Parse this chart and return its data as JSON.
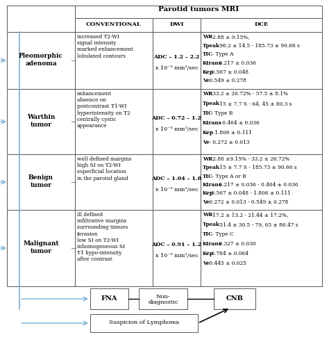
{
  "title": "Parotid tumors MRI",
  "col_headers": [
    "CONVENTIONAL",
    "DWI",
    "DCE"
  ],
  "row_headers": [
    "Pleomorphic\nadenoma",
    "Warthin\ntumor",
    "Benign\ntumor",
    "Malignant\ntumor"
  ],
  "conventional": [
    "increased T2-WI\nsignal intensity\nmarked enhancement\nlobulated contours",
    "enhancement\nabsence on\npostcontrast T1-WI\nhyperintensity on T2\ncentrally cystic\nappearance",
    "well defined margins\nhigh SI on T2-WI\nsuperficial location\nin the parotid gland",
    "ill defined\ninfiltrative margins\nsurrounding tissues\ninvasion\nlow SI on T2-WI\ninhomogeneous SI\nT1 hypo-intensity\nafter contrast"
  ],
  "dwi_line1": [
    "ADC – 1.2 – 2.2",
    "ADC – 0.72 – 1.2",
    "ADC – 1.04 – 1.8",
    "ADC – 0.91 – 1.2"
  ],
  "dwi_line2": "x 10⁻³ mm²/sec",
  "dce": [
    "WR - 2.88 ± 9.15%,\nTpeak - 96.2 ± 14.5 - 185.73 ± 90.66 s\nTIC – Type A\nKtrans 0.217 ± 0.036\nKep 0.567 ± 0.048\nVe 0.549 ± 0.278",
    "WR - 33.2 ± 26.72% - 57.5 ± 8.1%\nTpeak - 15 ± 7.7 S - 64, 45 ± 80.3 s\nTIC - Type B\nKtrans - 0.464 ± 0.036\nKep - 1.806 ± 0.111\nVe - 0.272 ± 0.013",
    "WR - 2.88 ±9.15% - 33.2 ± 26.72%\nTpeak - 15 ± 7.7 S - 185.73 ± 90.66 s\nTIC – Type A or B\nKtrans 0.217 ± 0.036 - 0.464 ± 0.036\nKep 0.567 ± 0.048 - 1.806 ± 0.111\nVe 0.272 ± 0.013 - 0.549 ± 0.278",
    "WR - 17.2 ± 13.2 - 21.44 ± 17.2%,\nTpeak - 51.4 ± 30.5 - 79, 65 ± 86.47 s\nTIC – Type C\nKtrans 0.327 ± 0.030\nKep 0.784 ± 0.064\nVe 0.445 ± 0.025"
  ],
  "dce_bold": [
    [
      "WR",
      "Tpeak",
      "TIC",
      "Ktrans",
      "Kep",
      "Ve"
    ],
    [
      "WR",
      "Tpeak",
      "TIC",
      "Ktrans",
      "Kep",
      "Ve"
    ],
    [
      "WR",
      "Tpeak",
      "TIC",
      "Ktrans",
      "Kep",
      "Ve"
    ],
    [
      "WR",
      "Tpeak",
      "TIC",
      "Ktrans",
      "Kep",
      "Ve"
    ]
  ],
  "border_color": "#555555",
  "blue_color": "#7aafd4",
  "bg_color": "#ffffff"
}
